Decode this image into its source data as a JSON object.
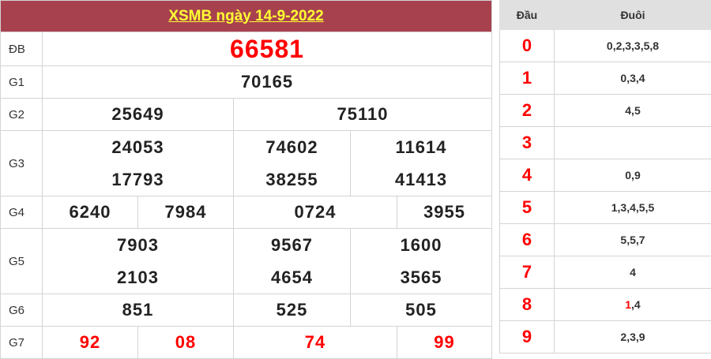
{
  "title": "XSMB ngày 14-9-2022",
  "labels": {
    "db": "ĐB",
    "g1": "G1",
    "g2": "G2",
    "g3": "G3",
    "g4": "G4",
    "g5": "G5",
    "g6": "G6",
    "g7": "G7"
  },
  "prizes": {
    "db": "66581",
    "g1": "70165",
    "g2": [
      "25649",
      "75110"
    ],
    "g3": [
      "24053",
      "74602",
      "11614",
      "17793",
      "38255",
      "41413"
    ],
    "g4": [
      "6240",
      "7984",
      "0724",
      "3955"
    ],
    "g5": [
      "7903",
      "9567",
      "1600",
      "2103",
      "4654",
      "3565"
    ],
    "g6": [
      "851",
      "525",
      "505"
    ],
    "g7": [
      "92",
      "08",
      "74",
      "99"
    ]
  },
  "loto": {
    "head_label": "Đầu",
    "tail_label": "Đuôi",
    "rows": [
      {
        "head": "0",
        "tail": "0,2,3,3,5,8"
      },
      {
        "head": "1",
        "tail": "0,3,4"
      },
      {
        "head": "2",
        "tail": "4,5"
      },
      {
        "head": "3",
        "tail": ""
      },
      {
        "head": "4",
        "tail": "0,9"
      },
      {
        "head": "5",
        "tail": "1,3,4,5,5"
      },
      {
        "head": "6",
        "tail": "5,5,7"
      },
      {
        "head": "7",
        "tail": "4"
      },
      {
        "head": "8",
        "tail_highlight": "1",
        "tail_rest": ",4"
      },
      {
        "head": "9",
        "tail": "2,3,9"
      }
    ]
  },
  "colors": {
    "header_bg": "#a8414e",
    "header_text": "#ffff33",
    "highlight": "#ff0000"
  }
}
